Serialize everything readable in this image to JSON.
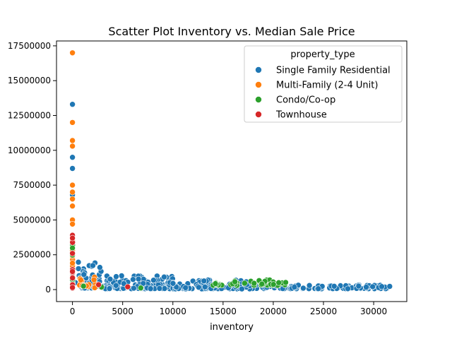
{
  "chart_data": {
    "type": "scatter",
    "title": "Scatter Plot Inventory vs. Median Sale Price",
    "xlabel": "inventory",
    "ylabel": "",
    "xlim": [
      -1590,
      33300
    ],
    "ylim": [
      -860000,
      17850000
    ],
    "x_ticks": [
      0,
      5000,
      10000,
      15000,
      20000,
      25000,
      30000
    ],
    "x_tick_labels": [
      "0",
      "5000",
      "10000",
      "15000",
      "20000",
      "25000",
      "30000"
    ],
    "y_ticks": [
      0,
      2500000,
      5000000,
      7500000,
      10000000,
      12500000,
      15000000,
      17500000
    ],
    "y_tick_labels": [
      "0",
      "2500000",
      "5000000",
      "7500000",
      "10000000",
      "12500000",
      "15000000",
      "17500000"
    ],
    "grid": false,
    "legend": {
      "title": "property_type",
      "placement": "top-right",
      "entries": [
        "Single Family Residential",
        "Multi-Family (2-4 Unit)",
        "Condo/Co-op",
        "Townhouse"
      ]
    },
    "series": [
      {
        "name": "Single Family Residential",
        "color": "#1f77b4",
        "clusters": [
          {
            "x_start": 0,
            "x_end": 10,
            "y_start": 100000,
            "y_end": 2200000,
            "count": 20
          },
          {
            "x_start": 300,
            "x_end": 3000,
            "y_start": 100000,
            "y_end": 2000000,
            "count": 60
          },
          {
            "x_start": 3000,
            "x_end": 10000,
            "y_start": 60000,
            "y_end": 1000000,
            "count": 120
          },
          {
            "x_start": 10000,
            "x_end": 20000,
            "y_start": 50000,
            "y_end": 700000,
            "count": 110
          },
          {
            "x_start": 20000,
            "x_end": 31800,
            "y_start": 60000,
            "y_end": 350000,
            "count": 90
          }
        ],
        "points": [
          {
            "x": 0,
            "y": 13300000
          },
          {
            "x": 0,
            "y": 9500000
          },
          {
            "x": 0,
            "y": 8700000
          },
          {
            "x": 0,
            "y": 6800000
          },
          {
            "x": 0,
            "y": 2100000
          },
          {
            "x": 0,
            "y": 1450000
          },
          {
            "x": 31600,
            "y": 230000
          },
          {
            "x": 30800,
            "y": 220000
          },
          {
            "x": 29900,
            "y": 210000
          },
          {
            "x": 28500,
            "y": 250000
          }
        ]
      },
      {
        "name": "Multi-Family (2-4 Unit)",
        "color": "#ff7f0e",
        "clusters": [
          {
            "x_start": 0,
            "x_end": 10,
            "y_start": 150000,
            "y_end": 3800000,
            "count": 30
          },
          {
            "x_start": 100,
            "x_end": 3000,
            "y_start": 100000,
            "y_end": 900000,
            "count": 15
          }
        ],
        "points": [
          {
            "x": 0,
            "y": 17000000
          },
          {
            "x": 0,
            "y": 12000000
          },
          {
            "x": 0,
            "y": 10700000
          },
          {
            "x": 0,
            "y": 10300000
          },
          {
            "x": 0,
            "y": 7500000
          },
          {
            "x": 0,
            "y": 7000000
          },
          {
            "x": 0,
            "y": 6500000
          },
          {
            "x": 0,
            "y": 6000000
          },
          {
            "x": 0,
            "y": 5000000
          },
          {
            "x": 0,
            "y": 4700000
          },
          {
            "x": 0,
            "y": 3900000
          },
          {
            "x": 0,
            "y": 3500000
          },
          {
            "x": 0,
            "y": 3300000
          },
          {
            "x": 0,
            "y": 2800000
          },
          {
            "x": 0,
            "y": 2400000
          },
          {
            "x": 0,
            "y": 1900000
          }
        ]
      },
      {
        "name": "Condo/Co-op",
        "color": "#2ca02c",
        "clusters": [
          {
            "x_start": 0,
            "x_end": 10,
            "y_start": 100000,
            "y_end": 3200000,
            "count": 8
          },
          {
            "x_start": 13500,
            "x_end": 21500,
            "y_start": 300000,
            "y_end": 700000,
            "count": 45
          }
        ],
        "points": [
          {
            "x": 6800,
            "y": 120000
          },
          {
            "x": 1100,
            "y": 250000
          },
          {
            "x": 2900,
            "y": 180000
          }
        ]
      },
      {
        "name": "Townhouse",
        "color": "#d62728",
        "clusters": [
          {
            "x_start": 0,
            "x_end": 10,
            "y_start": 100000,
            "y_end": 3900000,
            "count": 12
          }
        ],
        "points": [
          {
            "x": 0,
            "y": 3900000
          },
          {
            "x": 0,
            "y": 3700000
          },
          {
            "x": 0,
            "y": 2600000
          },
          {
            "x": 0,
            "y": 1300000
          },
          {
            "x": 2600,
            "y": 350000
          },
          {
            "x": 5500,
            "y": 200000
          },
          {
            "x": 0,
            "y": 150000
          }
        ]
      }
    ]
  }
}
